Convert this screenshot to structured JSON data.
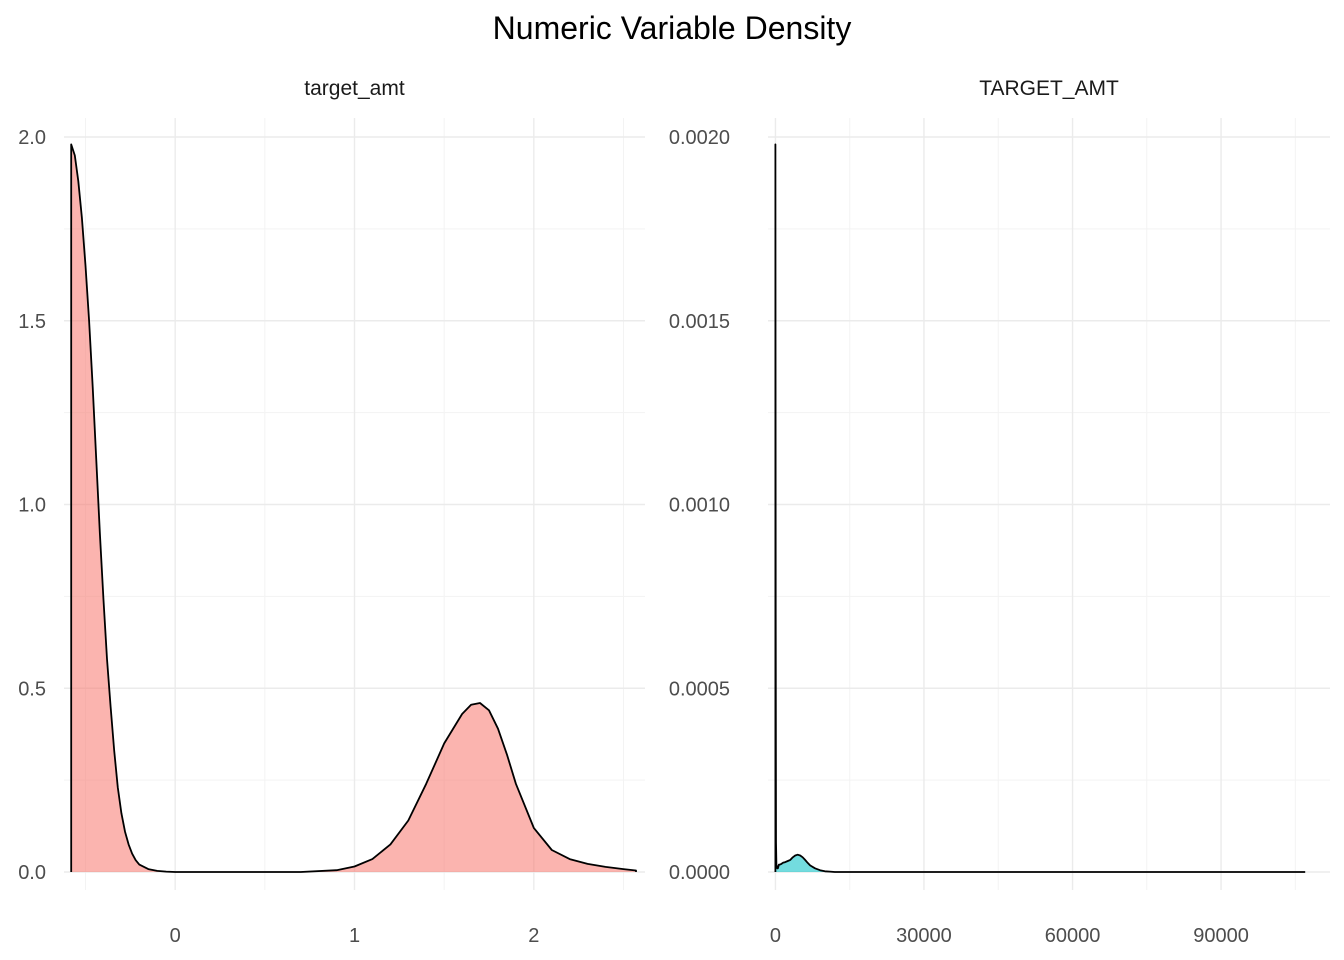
{
  "title": "Numeric Variable Density",
  "colors": {
    "panel1_fill": "#f8766d",
    "panel2_fill": "#00bfc4",
    "line": "#000000",
    "grid": "#ebebeb"
  },
  "chart_data": [
    {
      "type": "area",
      "panel": "target_amt",
      "xlim": [
        -0.62,
        2.62
      ],
      "ylim": [
        0,
        2.0
      ],
      "x_ticks": [
        0,
        1,
        2
      ],
      "x_tick_labels": [
        "0",
        "1",
        "2"
      ],
      "y_ticks": [
        0,
        0.5,
        1.0,
        1.5,
        2.0
      ],
      "y_tick_labels": [
        "0.0",
        "0.5",
        "1.0",
        "1.5",
        "2.0"
      ],
      "grid": true,
      "series": [
        {
          "x": [
            -0.58,
            -0.56,
            -0.54,
            -0.52,
            -0.5,
            -0.48,
            -0.46,
            -0.44,
            -0.42,
            -0.4,
            -0.38,
            -0.36,
            -0.34,
            -0.32,
            -0.3,
            -0.28,
            -0.26,
            -0.24,
            -0.22,
            -0.2,
            -0.15,
            -0.1,
            -0.05,
            0.0,
            0.2,
            0.5,
            0.7,
            0.9,
            1.0,
            1.1,
            1.2,
            1.3,
            1.4,
            1.5,
            1.6,
            1.65,
            1.7,
            1.75,
            1.8,
            1.85,
            1.9,
            2.0,
            2.1,
            2.2,
            2.3,
            2.4,
            2.5,
            2.57
          ],
          "y": [
            1.98,
            1.95,
            1.88,
            1.78,
            1.65,
            1.5,
            1.32,
            1.12,
            0.92,
            0.74,
            0.58,
            0.45,
            0.33,
            0.23,
            0.16,
            0.11,
            0.075,
            0.05,
            0.032,
            0.02,
            0.008,
            0.003,
            0.001,
            0.0,
            0.0,
            0.0,
            0.0,
            0.005,
            0.015,
            0.035,
            0.075,
            0.14,
            0.24,
            0.35,
            0.43,
            0.455,
            0.46,
            0.44,
            0.39,
            0.32,
            0.24,
            0.12,
            0.06,
            0.035,
            0.022,
            0.014,
            0.008,
            0.004
          ]
        }
      ]
    },
    {
      "type": "area",
      "panel": "TARGET_AMT",
      "xlim": [
        -1500,
        112000
      ],
      "ylim": [
        0,
        0.002
      ],
      "x_ticks": [
        0,
        30000,
        60000,
        90000
      ],
      "x_tick_labels": [
        "0",
        "30000",
        "60000",
        "90000"
      ],
      "y_ticks": [
        0,
        0.0005,
        0.001,
        0.0015,
        0.002
      ],
      "y_tick_labels": [
        "0.0000",
        "0.0005",
        "0.0010",
        "0.0015",
        "0.0020"
      ],
      "grid": true,
      "series": [
        {
          "x": [
            0,
            50,
            120,
            200,
            350,
            500,
            700,
            900,
            1200,
            1500,
            2000,
            2500,
            3000,
            3500,
            4000,
            4500,
            5000,
            5500,
            6000,
            6500,
            7000,
            8000,
            9000,
            10000,
            11000,
            12000,
            20000,
            50000,
            80000,
            107000
          ],
          "y": [
            0.00198,
            0.0007,
            8e-05,
            2e-05,
            1e-05,
            1e-05,
            2e-05,
            2e-05,
            2.2e-05,
            2.5e-05,
            2.7e-05,
            3e-05,
            3.3e-05,
            4e-05,
            4.5e-05,
            4.7e-05,
            4.5e-05,
            4e-05,
            3.3e-05,
            2.5e-05,
            1.8e-05,
            1e-05,
            5e-06,
            2e-06,
            1e-06,
            0.0,
            0.0,
            0.0,
            0.0,
            0.0
          ]
        }
      ]
    }
  ]
}
